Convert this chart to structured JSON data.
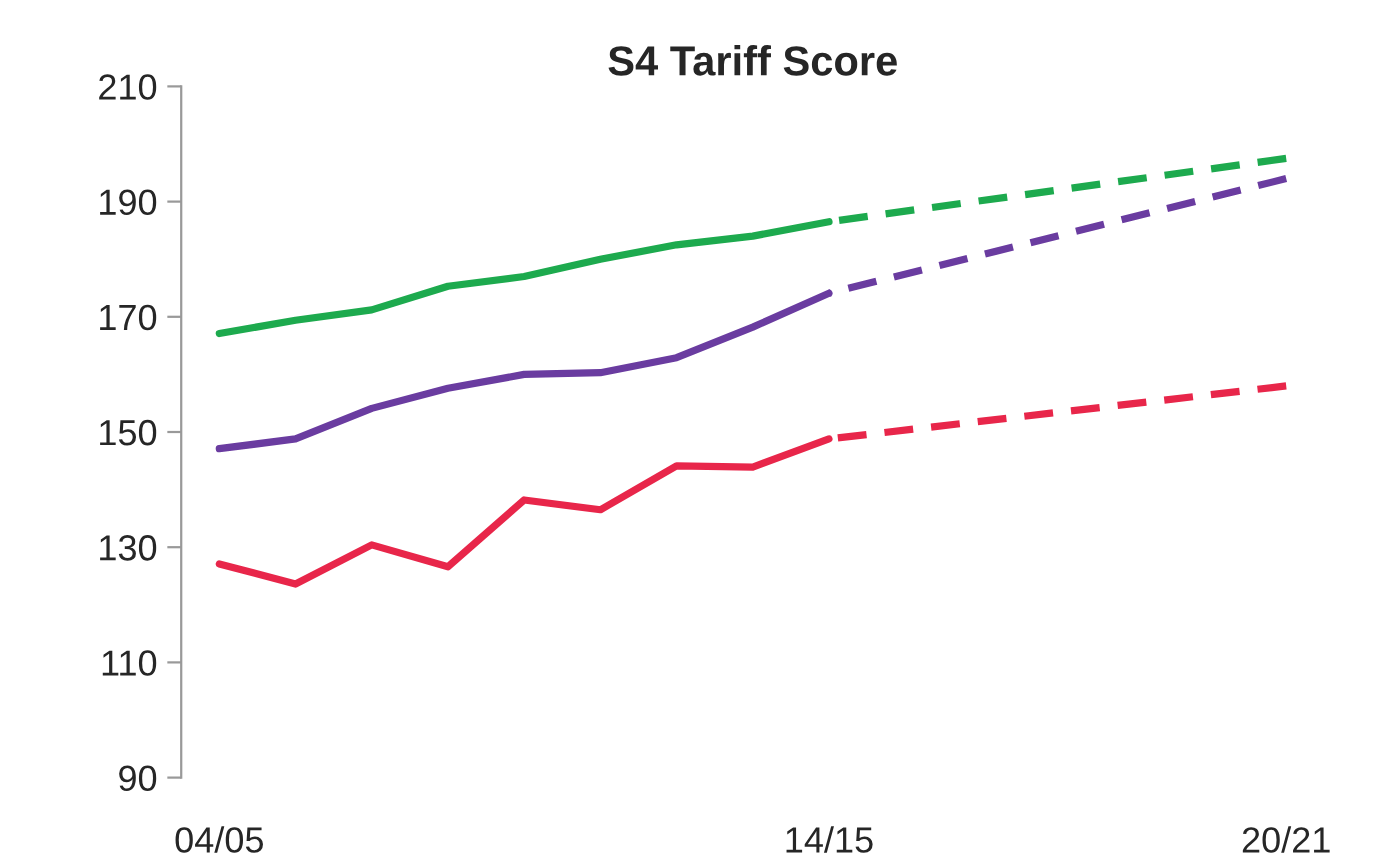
{
  "chart_data": {
    "type": "line",
    "title": "S4 Tariff Score",
    "categories": [
      "04/05",
      null,
      null,
      null,
      null,
      null,
      null,
      null,
      "14/15",
      null,
      null,
      null,
      null,
      null,
      "20/21"
    ],
    "ylim": [
      90,
      210
    ],
    "yticks": [
      90,
      110,
      130,
      150,
      170,
      190,
      210
    ],
    "grid": false,
    "legend": false,
    "marker": "none",
    "series": [
      {
        "color": "#1daa4e",
        "line_style": "solid",
        "values": [
          167.1,
          169.4,
          171.2,
          175.3,
          177,
          180,
          182.5,
          184,
          186.5,
          null,
          null,
          null,
          null,
          null,
          null
        ]
      },
      {
        "color": "#6a3ca0",
        "line_style": "solid",
        "values": [
          147.1,
          148.8,
          154.1,
          157.6,
          160,
          160.3,
          162.9,
          168.2,
          174.1,
          null,
          null,
          null,
          null,
          null,
          null
        ]
      },
      {
        "color": "#e8264a",
        "line_style": "solid",
        "values": [
          127.1,
          123.6,
          130.4,
          126.6,
          138.2,
          136.5,
          144.1,
          143.9,
          148.8,
          null,
          null,
          null,
          null,
          null,
          null
        ]
      },
      {
        "color": "#1daa4e",
        "line_style": "dashed",
        "values": [
          null,
          null,
          null,
          null,
          null,
          null,
          null,
          null,
          186.5,
          null,
          null,
          null,
          null,
          null,
          197.5
        ]
      },
      {
        "color": "#6a3ca0",
        "line_style": "dashed",
        "values": [
          null,
          null,
          null,
          null,
          null,
          null,
          null,
          null,
          174.1,
          null,
          null,
          null,
          null,
          null,
          194
        ]
      },
      {
        "color": "#e8264a",
        "line_style": "dashed",
        "values": [
          null,
          null,
          null,
          null,
          null,
          null,
          null,
          null,
          148.8,
          null,
          null,
          null,
          null,
          null,
          158
        ]
      }
    ]
  }
}
